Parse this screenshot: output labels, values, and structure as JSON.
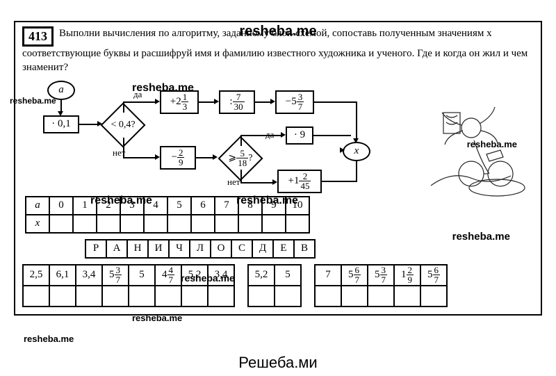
{
  "watermarks": {
    "top": "resheba.me",
    "footer": "Решеба.ми",
    "w1": "resheba.me",
    "w2": "resheba.me",
    "w3": "resheba.me",
    "w4": "resheba.me",
    "w5": "resheba.me",
    "w6": "resheba.me",
    "w7": "resheba.me",
    "w8": "resheba.me",
    "w9": "resheba.me"
  },
  "task": {
    "number": "413",
    "text": "Выполни вычисления по алгоритму, заданному блок-схемой, сопоставь полученным значениям x соответствующие буквы и расшифруй имя и фамилию известного художника и ученого. Где и когда он жил и чем знаменит?"
  },
  "flow": {
    "start": "a",
    "mul": "· 0,1",
    "cond1": "< 0,4?",
    "yes": "да",
    "no": "нет",
    "add1_a": "+2",
    "add1_n": "1",
    "add1_d": "3",
    "div_n": "7",
    "div_d": "30",
    "div_pre": ":",
    "sub1_a": "−5",
    "sub1_n": "3",
    "sub1_d": "7",
    "sub2_pre": "−",
    "sub2_n": "2",
    "sub2_d": "9",
    "cond2_pre": "⩾",
    "cond2_n": "5",
    "cond2_d": "18",
    "cond2_post": "?",
    "mul9": "· 9",
    "add2_a": "+1",
    "add2_n": "2",
    "add2_d": "45",
    "out": "x"
  },
  "table_top": {
    "row1": [
      "a",
      "0",
      "1",
      "2",
      "3",
      "4",
      "5",
      "6",
      "7",
      "8",
      "9",
      "10"
    ],
    "row2": [
      "x",
      "",
      "",
      "",
      "",
      "",
      "",
      "",
      "",
      "",
      "",
      ""
    ]
  },
  "letters": [
    "Р",
    "А",
    "Н",
    "И",
    "Ч",
    "Л",
    "О",
    "С",
    "Д",
    "Е",
    "В"
  ],
  "values_row": [
    "2,5",
    "6,1",
    "3,4",
    {
      "whole": "5",
      "n": "3",
      "d": "7"
    },
    "5",
    {
      "whole": "4",
      "n": "4",
      "d": "7"
    },
    "5,2",
    "3,4"
  ],
  "block2": [
    "5,2",
    "5"
  ],
  "block3": [
    "7",
    {
      "whole": "5",
      "n": "6",
      "d": "7"
    },
    {
      "whole": "5",
      "n": "3",
      "d": "7"
    },
    {
      "whole": "1",
      "n": "2",
      "d": "9"
    },
    {
      "whole": "5",
      "n": "6",
      "d": "7"
    }
  ]
}
